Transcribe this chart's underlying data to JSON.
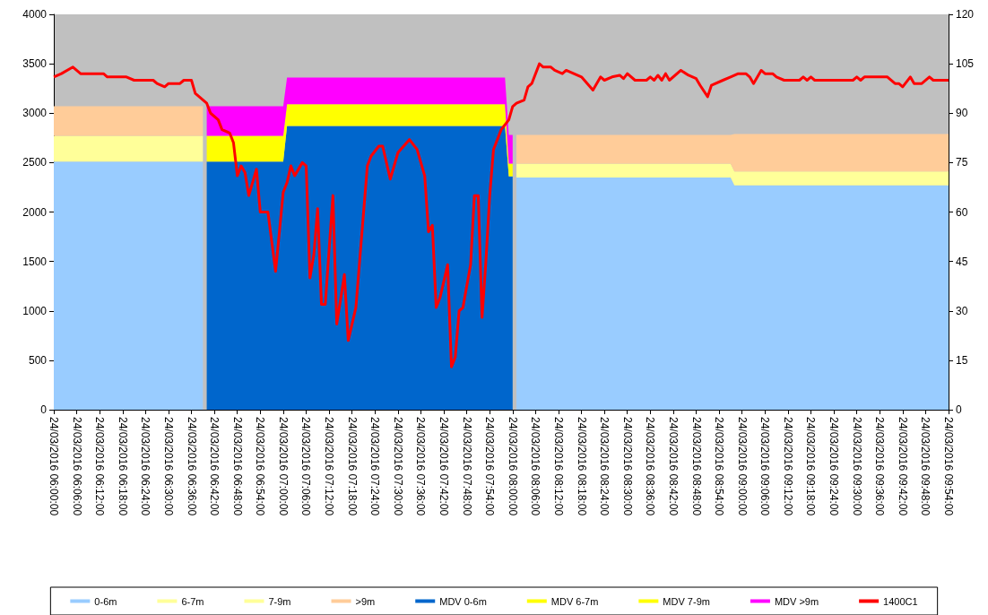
{
  "chart_data": {
    "type": "area",
    "stacked": true,
    "grid": false,
    "legend": "bottom",
    "x": [
      "2016-03-24T06:00",
      "2016-03-24T06:39",
      "2016-03-24T06:40",
      "2016-03-24T07:00",
      "2016-03-24T07:01",
      "2016-03-24T07:58",
      "2016-03-24T07:59",
      "2016-03-24T08:00",
      "2016-03-24T08:01",
      "2016-03-24T08:57",
      "2016-03-24T08:58",
      "2016-03-24T09:54"
    ],
    "xlim": [
      "2016-03-24T06:00",
      "2016-03-24T09:54"
    ],
    "xticks": [
      {
        "value": "2016-03-24T06:00",
        "label": "24/03/2016 06:00:00"
      },
      {
        "value": "2016-03-24T06:06",
        "label": "24/03/2016 06:06:00"
      },
      {
        "value": "2016-03-24T06:12",
        "label": "24/03/2016 06:12:00"
      },
      {
        "value": "2016-03-24T06:18",
        "label": "24/03/2016 06:18:00"
      },
      {
        "value": "2016-03-24T06:24",
        "label": "24/03/2016 06:24:00"
      },
      {
        "value": "2016-03-24T06:30",
        "label": "24/03/2016 06:30:00"
      },
      {
        "value": "2016-03-24T06:36",
        "label": "24/03/2016 06:36:00"
      },
      {
        "value": "2016-03-24T06:42",
        "label": "24/03/2016 06:42:00"
      },
      {
        "value": "2016-03-24T06:48",
        "label": "24/03/2016 06:48:00"
      },
      {
        "value": "2016-03-24T06:54",
        "label": "24/03/2016 06:54:00"
      },
      {
        "value": "2016-03-24T07:00",
        "label": "24/03/2016 07:00:00"
      },
      {
        "value": "2016-03-24T07:06",
        "label": "24/03/2016 07:06:00"
      },
      {
        "value": "2016-03-24T07:12",
        "label": "24/03/2016 07:12:00"
      },
      {
        "value": "2016-03-24T07:18",
        "label": "24/03/2016 07:18:00"
      },
      {
        "value": "2016-03-24T07:24",
        "label": "24/03/2016 07:24:00"
      },
      {
        "value": "2016-03-24T07:30",
        "label": "24/03/2016 07:30:00"
      },
      {
        "value": "2016-03-24T07:36",
        "label": "24/03/2016 07:36:00"
      },
      {
        "value": "2016-03-24T07:42",
        "label": "24/03/2016 07:42:00"
      },
      {
        "value": "2016-03-24T07:48",
        "label": "24/03/2016 07:48:00"
      },
      {
        "value": "2016-03-24T07:54",
        "label": "24/03/2016 07:54:00"
      },
      {
        "value": "2016-03-24T08:00",
        "label": "24/03/2016 08:00:00"
      },
      {
        "value": "2016-03-24T08:06",
        "label": "24/03/2016 08:06:00"
      },
      {
        "value": "2016-03-24T08:12",
        "label": "24/03/2016 08:12:00"
      },
      {
        "value": "2016-03-24T08:18",
        "label": "24/03/2016 08:18:00"
      },
      {
        "value": "2016-03-24T08:24",
        "label": "24/03/2016 08:24:00"
      },
      {
        "value": "2016-03-24T08:30",
        "label": "24/03/2016 08:30:00"
      },
      {
        "value": "2016-03-24T08:36",
        "label": "24/03/2016 08:36:00"
      },
      {
        "value": "2016-03-24T08:42",
        "label": "24/03/2016 08:42:00"
      },
      {
        "value": "2016-03-24T08:48",
        "label": "24/03/2016 08:48:00"
      },
      {
        "value": "2016-03-24T08:54",
        "label": "24/03/2016 08:54:00"
      },
      {
        "value": "2016-03-24T09:00",
        "label": "24/03/2016 09:00:00"
      },
      {
        "value": "2016-03-24T09:06",
        "label": "24/03/2016 09:06:00"
      },
      {
        "value": "2016-03-24T09:12",
        "label": "24/03/2016 09:12:00"
      },
      {
        "value": "2016-03-24T09:18",
        "label": "24/03/2016 09:18:00"
      },
      {
        "value": "2016-03-24T09:24",
        "label": "24/03/2016 09:24:00"
      },
      {
        "value": "2016-03-24T09:30",
        "label": "24/03/2016 09:30:00"
      },
      {
        "value": "2016-03-24T09:36",
        "label": "24/03/2016 09:36:00"
      },
      {
        "value": "2016-03-24T09:42",
        "label": "24/03/2016 09:42:00"
      },
      {
        "value": "2016-03-24T09:48",
        "label": "24/03/2016 09:48:00"
      },
      {
        "value": "2016-03-24T09:54",
        "label": "24/03/2016 09:54:00"
      }
    ],
    "ylim": [
      0,
      4000
    ],
    "yticks": [
      0,
      500,
      1000,
      1500,
      2000,
      2500,
      3000,
      3500,
      4000
    ],
    "y2lim": [
      0,
      120
    ],
    "y2ticks": [
      0,
      15,
      30,
      45,
      60,
      75,
      90,
      105,
      120
    ],
    "series": [
      {
        "name": "0-6m",
        "color": "#99ccff",
        "values": [
          2510,
          2510,
          null,
          null,
          null,
          null,
          null,
          null,
          2350,
          2350,
          2270,
          2270
        ]
      },
      {
        "name": "6-7m",
        "color": "#ffff99",
        "values": [
          260,
          260,
          null,
          null,
          null,
          null,
          null,
          null,
          140,
          140,
          140,
          140
        ]
      },
      {
        "name": "7-9m",
        "color": "#ffff99",
        "values": [
          null,
          null,
          null,
          null,
          null,
          null,
          null,
          null,
          null,
          null,
          null,
          null
        ]
      },
      {
        "name": ">9m",
        "color": "#ffcc99",
        "values": [
          300,
          300,
          null,
          null,
          null,
          null,
          null,
          null,
          290,
          290,
          380,
          380
        ]
      },
      {
        "name": "MDV 0-6m",
        "color": "#0066cc",
        "values": [
          null,
          null,
          2510,
          2510,
          2870,
          2870,
          2360,
          2360,
          null,
          null,
          null,
          null
        ]
      },
      {
        "name": "MDV 6-7m",
        "color": "#ffff00",
        "values": [
          null,
          null,
          260,
          260,
          220,
          220,
          130,
          130,
          null,
          null,
          null,
          null
        ]
      },
      {
        "name": "MDV 7-9m",
        "color": "#ffff00",
        "values": [
          null,
          null,
          null,
          null,
          null,
          null,
          null,
          null,
          null,
          null,
          null,
          null
        ]
      },
      {
        "name": "MDV >9m",
        "color": "#ff00ff",
        "values": [
          null,
          null,
          300,
          300,
          270,
          270,
          290,
          290,
          null,
          null,
          null,
          null
        ]
      },
      {
        "name": "1400C1",
        "color": "#ff0000",
        "type": "line",
        "axis": "y2",
        "x": [
          "2016-03-24T06:00",
          "2016-03-24T06:02",
          "2016-03-24T06:05",
          "2016-03-24T06:07",
          "2016-03-24T06:13",
          "2016-03-24T06:14",
          "2016-03-24T06:19",
          "2016-03-24T06:21",
          "2016-03-24T06:26",
          "2016-03-24T06:27",
          "2016-03-24T06:29",
          "2016-03-24T06:30",
          "2016-03-24T06:33",
          "2016-03-24T06:34",
          "2016-03-24T06:36",
          "2016-03-24T06:37",
          "2016-03-24T06:40",
          "2016-03-24T06:41",
          "2016-03-24T06:43",
          "2016-03-24T06:44",
          "2016-03-24T06:46",
          "2016-03-24T06:47",
          "2016-03-24T06:48",
          "2016-03-24T06:49",
          "2016-03-24T06:50",
          "2016-03-24T06:51",
          "2016-03-24T06:53",
          "2016-03-24T06:54",
          "2016-03-24T06:56",
          "2016-03-24T06:58",
          "2016-03-24T07:00",
          "2016-03-24T07:01",
          "2016-03-24T07:02",
          "2016-03-24T07:03",
          "2016-03-24T07:05",
          "2016-03-24T07:06",
          "2016-03-24T07:07",
          "2016-03-24T07:08",
          "2016-03-24T07:09",
          "2016-03-24T07:10",
          "2016-03-24T07:11",
          "2016-03-24T07:13",
          "2016-03-24T07:14",
          "2016-03-24T07:16",
          "2016-03-24T07:17",
          "2016-03-24T07:19",
          "2016-03-24T07:22",
          "2016-03-24T07:23",
          "2016-03-24T07:25",
          "2016-03-24T07:26",
          "2016-03-24T07:28",
          "2016-03-24T07:30",
          "2016-03-24T07:33",
          "2016-03-24T07:35",
          "2016-03-24T07:37",
          "2016-03-24T07:38",
          "2016-03-24T07:39",
          "2016-03-24T07:40",
          "2016-03-24T07:41",
          "2016-03-24T07:43",
          "2016-03-24T07:44",
          "2016-03-24T07:45",
          "2016-03-24T07:46",
          "2016-03-24T07:47",
          "2016-03-24T07:49",
          "2016-03-24T07:50",
          "2016-03-24T07:51",
          "2016-03-24T07:52",
          "2016-03-24T07:53",
          "2016-03-24T07:54",
          "2016-03-24T07:55",
          "2016-03-24T07:57",
          "2016-03-24T07:59",
          "2016-03-24T08:00",
          "2016-03-24T08:01",
          "2016-03-24T08:03",
          "2016-03-24T08:04",
          "2016-03-24T08:05",
          "2016-03-24T08:07",
          "2016-03-24T08:08",
          "2016-03-24T08:10",
          "2016-03-24T08:11",
          "2016-03-24T08:13",
          "2016-03-24T08:14",
          "2016-03-24T08:16",
          "2016-03-24T08:18",
          "2016-03-24T08:21",
          "2016-03-24T08:23",
          "2016-03-24T08:24",
          "2016-03-24T08:26",
          "2016-03-24T08:28",
          "2016-03-24T08:29",
          "2016-03-24T08:30",
          "2016-03-24T08:32",
          "2016-03-24T08:35",
          "2016-03-24T08:36",
          "2016-03-24T08:37",
          "2016-03-24T08:38",
          "2016-03-24T08:39",
          "2016-03-24T08:40",
          "2016-03-24T08:41",
          "2016-03-24T08:44",
          "2016-03-24T08:46",
          "2016-03-24T08:48",
          "2016-03-24T08:49",
          "2016-03-24T08:51",
          "2016-03-24T08:52",
          "2016-03-24T08:55",
          "2016-03-24T08:57",
          "2016-03-24T08:59",
          "2016-03-24T09:01",
          "2016-03-24T09:02",
          "2016-03-24T09:03",
          "2016-03-24T09:05",
          "2016-03-24T09:06",
          "2016-03-24T09:08",
          "2016-03-24T09:09",
          "2016-03-24T09:11",
          "2016-03-24T09:15",
          "2016-03-24T09:16",
          "2016-03-24T09:17",
          "2016-03-24T09:18",
          "2016-03-24T09:19",
          "2016-03-24T09:29",
          "2016-03-24T09:30",
          "2016-03-24T09:31",
          "2016-03-24T09:32",
          "2016-03-24T09:38",
          "2016-03-24T09:40",
          "2016-03-24T09:41",
          "2016-03-24T09:42",
          "2016-03-24T09:44",
          "2016-03-24T09:45",
          "2016-03-24T09:47",
          "2016-03-24T09:49",
          "2016-03-24T09:50",
          "2016-03-24T09:54"
        ],
        "values": [
          101,
          102,
          104,
          102,
          102,
          101,
          101,
          100,
          100,
          99,
          98,
          99,
          99,
          100,
          100,
          96,
          93,
          90,
          88,
          85,
          84,
          81,
          71,
          74,
          72,
          65,
          73,
          60,
          60,
          42,
          66,
          69,
          74,
          71,
          75,
          74,
          40,
          47,
          61,
          32,
          32,
          65,
          26,
          41,
          21,
          31,
          74,
          77,
          80,
          80,
          70,
          78,
          82,
          79,
          71,
          54,
          56,
          31,
          34,
          44,
          13,
          16,
          30,
          31,
          44,
          65,
          65,
          28,
          45,
          65,
          79,
          85,
          88,
          92,
          93,
          94,
          98,
          99,
          105,
          104,
          104,
          103,
          102,
          103,
          102,
          101,
          97,
          101,
          100,
          101,
          101.5,
          100.5,
          102,
          100,
          100,
          101,
          100,
          101.5,
          100,
          102,
          100,
          103,
          101.5,
          100.5,
          98.5,
          95,
          98.5,
          100,
          101,
          102,
          102,
          101,
          99,
          103,
          102,
          102,
          101,
          100,
          100,
          101,
          100,
          101,
          100,
          100,
          101,
          100,
          101,
          101,
          99,
          99,
          98,
          101,
          99,
          99,
          101,
          100,
          100
        ]
      }
    ]
  }
}
